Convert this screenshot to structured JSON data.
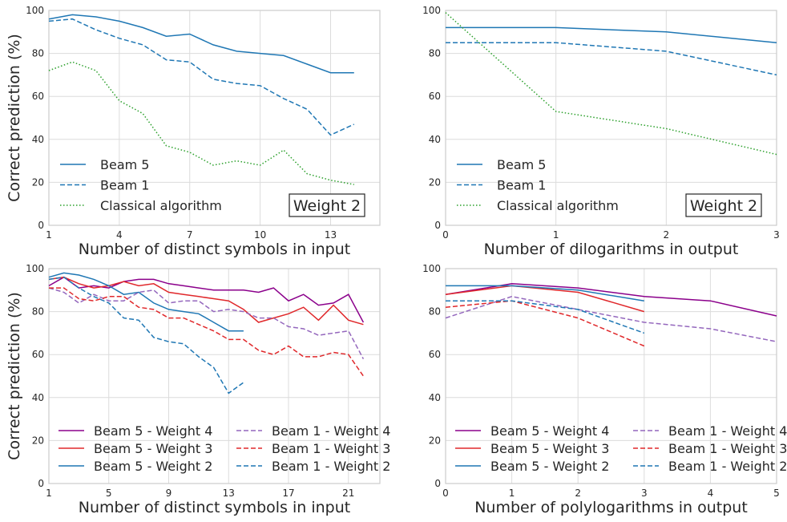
{
  "chart_data": [
    {
      "type": "line",
      "xlabel": "Number of distinct symbols in input",
      "ylabel": "Correct prediction (%)",
      "xlim": [
        1,
        15.1
      ],
      "ylim": [
        0,
        100
      ],
      "xticks": [
        1,
        4,
        7,
        10,
        13
      ],
      "yticks": [
        0,
        20,
        40,
        60,
        80,
        100
      ],
      "grid": true,
      "legend_placement": "lower-left",
      "legend_columns": 1,
      "annotation": "Weight 2",
      "series": [
        {
          "name": "Beam 5",
          "color": "#1f77b4",
          "style": "solid",
          "x": [
            1,
            2,
            3,
            4,
            5,
            6,
            7,
            8,
            9,
            10,
            11,
            12,
            13,
            14
          ],
          "y": [
            96,
            98,
            97,
            95,
            92,
            88,
            89,
            84,
            81,
            80,
            79,
            75,
            71,
            71
          ]
        },
        {
          "name": "Beam 1",
          "color": "#1f77b4",
          "style": "dashed",
          "x": [
            1,
            2,
            3,
            4,
            5,
            6,
            7,
            8,
            9,
            10,
            11,
            12,
            13,
            14
          ],
          "y": [
            95,
            96,
            91,
            87,
            84,
            77,
            76,
            68,
            66,
            65,
            59,
            54,
            42,
            47
          ]
        },
        {
          "name": "Classical algorithm",
          "color": "#2ca02c",
          "style": "dotted",
          "x": [
            1,
            2,
            3,
            4,
            5,
            6,
            7,
            8,
            9,
            10,
            11,
            12,
            13,
            14
          ],
          "y": [
            72,
            76,
            72,
            58,
            52,
            37,
            34,
            28,
            30,
            28,
            35,
            24,
            21,
            19
          ]
        }
      ]
    },
    {
      "type": "line",
      "xlabel": "Number of dilogarithms in output",
      "ylabel": "",
      "xlim": [
        0,
        3
      ],
      "ylim": [
        0,
        100
      ],
      "xticks": [
        0,
        1,
        2,
        3
      ],
      "yticks": [
        0,
        20,
        40,
        60,
        80,
        100
      ],
      "grid": true,
      "legend_placement": "lower-left",
      "legend_columns": 1,
      "annotation": "Weight 2",
      "series": [
        {
          "name": "Beam 5",
          "color": "#1f77b4",
          "style": "solid",
          "x": [
            0,
            1,
            2,
            3
          ],
          "y": [
            92,
            92,
            90,
            85
          ]
        },
        {
          "name": "Beam 1",
          "color": "#1f77b4",
          "style": "dashed",
          "x": [
            0,
            1,
            2,
            3
          ],
          "y": [
            85,
            85,
            81,
            70
          ]
        },
        {
          "name": "Classical algorithm",
          "color": "#2ca02c",
          "style": "dotted",
          "x": [
            0,
            1,
            2,
            3
          ],
          "y": [
            99,
            53,
            45,
            33
          ]
        }
      ]
    },
    {
      "type": "line",
      "xlabel": "Number of distinct symbols in input",
      "ylabel": "Correct prediction (%)",
      "xlim": [
        1,
        23.1
      ],
      "ylim": [
        0,
        100
      ],
      "xticks": [
        1,
        5,
        9,
        13,
        17,
        21
      ],
      "yticks": [
        0,
        20,
        40,
        60,
        80,
        100
      ],
      "grid": true,
      "legend_placement": "lower-center",
      "legend_columns": 2,
      "annotation": "",
      "series": [
        {
          "name": "Beam 5 - Weight 4",
          "color": "#8b008b",
          "style": "solid",
          "x": [
            1,
            2,
            3,
            4,
            5,
            6,
            7,
            8,
            9,
            10,
            11,
            12,
            13,
            14,
            15,
            16,
            17,
            18,
            19,
            20,
            21,
            22
          ],
          "y": [
            92,
            96,
            91,
            92,
            91,
            94,
            95,
            95,
            93,
            92,
            91,
            90,
            90,
            90,
            89,
            91,
            85,
            88,
            83,
            84,
            88,
            75
          ]
        },
        {
          "name": "Beam 5 - Weight 3",
          "color": "#e0282b",
          "style": "solid",
          "x": [
            1,
            2,
            3,
            4,
            5,
            6,
            7,
            8,
            9,
            10,
            11,
            12,
            13,
            14,
            15,
            16,
            17,
            18,
            19,
            20,
            21,
            22
          ],
          "y": [
            95,
            96,
            93,
            91,
            92,
            94,
            92,
            93,
            89,
            88,
            87,
            86,
            85,
            81,
            75,
            77,
            79,
            82,
            76,
            83,
            76,
            74
          ]
        },
        {
          "name": "Beam 5 - Weight 2",
          "color": "#1f77b4",
          "style": "solid",
          "x": [
            1,
            2,
            3,
            4,
            5,
            6,
            7,
            8,
            9,
            10,
            11,
            12,
            13,
            14
          ],
          "y": [
            96,
            98,
            97,
            95,
            92,
            88,
            89,
            84,
            81,
            80,
            79,
            75,
            71,
            71
          ]
        },
        {
          "name": "Beam 1 - Weight 4",
          "color": "#9467bd",
          "style": "dashed",
          "x": [
            1,
            2,
            3,
            4,
            5,
            6,
            7,
            8,
            9,
            10,
            11,
            12,
            13,
            14,
            15,
            16,
            17,
            18,
            19,
            20,
            21,
            22
          ],
          "y": [
            91,
            89,
            84,
            88,
            85,
            85,
            89,
            90,
            84,
            85,
            85,
            80,
            81,
            80,
            77,
            77,
            73,
            72,
            69,
            70,
            71,
            58
          ]
        },
        {
          "name": "Beam 1 - Weight 3",
          "color": "#e0282b",
          "style": "dashed",
          "x": [
            1,
            2,
            3,
            4,
            5,
            6,
            7,
            8,
            9,
            10,
            11,
            12,
            13,
            14,
            15,
            16,
            17,
            18,
            19,
            20,
            21,
            22
          ],
          "y": [
            91,
            91,
            86,
            85,
            87,
            87,
            82,
            81,
            77,
            77,
            74,
            71,
            67,
            67,
            62,
            60,
            64,
            59,
            59,
            61,
            60,
            50
          ]
        },
        {
          "name": "Beam 1 - Weight 2",
          "color": "#1f77b4",
          "style": "dashed",
          "x": [
            1,
            2,
            3,
            4,
            5,
            6,
            7,
            8,
            9,
            10,
            11,
            12,
            13,
            14
          ],
          "y": [
            95,
            96,
            91,
            87,
            84,
            77,
            76,
            68,
            66,
            65,
            59,
            54,
            42,
            47
          ]
        }
      ]
    },
    {
      "type": "line",
      "xlabel": "Number of polylogarithms in output",
      "ylabel": "",
      "xlim": [
        0,
        5
      ],
      "ylim": [
        0,
        100
      ],
      "xticks": [
        0,
        1,
        2,
        3,
        4,
        5
      ],
      "yticks": [
        0,
        20,
        40,
        60,
        80,
        100
      ],
      "grid": true,
      "legend_placement": "lower-center",
      "legend_columns": 2,
      "annotation": "",
      "series": [
        {
          "name": "Beam 5 - Weight 4",
          "color": "#8b008b",
          "style": "solid",
          "x": [
            0,
            1,
            2,
            3,
            4,
            5
          ],
          "y": [
            88,
            93,
            91,
            87,
            85,
            78
          ]
        },
        {
          "name": "Beam 5 - Weight 3",
          "color": "#e0282b",
          "style": "solid",
          "x": [
            0,
            1,
            2,
            3
          ],
          "y": [
            88,
            92,
            89,
            80
          ]
        },
        {
          "name": "Beam 5 - Weight 2",
          "color": "#1f77b4",
          "style": "solid",
          "x": [
            0,
            1,
            2,
            3
          ],
          "y": [
            92,
            92,
            90,
            85
          ]
        },
        {
          "name": "Beam 1 - Weight 4",
          "color": "#9467bd",
          "style": "dashed",
          "x": [
            0,
            1,
            2,
            3,
            4,
            5
          ],
          "y": [
            77,
            87,
            81,
            75,
            72,
            66
          ]
        },
        {
          "name": "Beam 1 - Weight 3",
          "color": "#e0282b",
          "style": "dashed",
          "x": [
            0,
            1,
            2,
            3
          ],
          "y": [
            82,
            85,
            77,
            64
          ]
        },
        {
          "name": "Beam 1 - Weight 2",
          "color": "#1f77b4",
          "style": "dashed",
          "x": [
            0,
            1,
            2,
            3
          ],
          "y": [
            85,
            85,
            81,
            70
          ]
        }
      ]
    }
  ]
}
